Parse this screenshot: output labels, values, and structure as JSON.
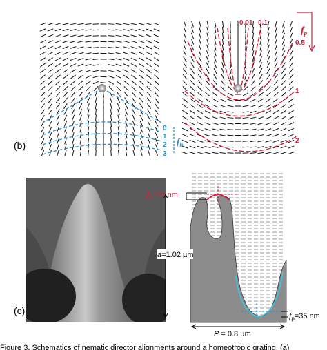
{
  "panel_b": {
    "label": "(b)",
    "left": {
      "contour_labels": [
        "0",
        "1",
        "2",
        "3"
      ],
      "axis_symbol": "f",
      "axis_subscript": "h"
    },
    "right": {
      "contour_labels": [
        "0.01",
        "0.1",
        "0.5",
        "1",
        "2"
      ],
      "axis_symbol": "f",
      "axis_subscript": "p"
    }
  },
  "panel_c": {
    "label": "(c)",
    "fh_annotation": {
      "symbol": "f",
      "subscript": "h",
      "text": "=24 nm"
    },
    "a_annotation": {
      "symbol": "a",
      "text": "=1.02 µm"
    },
    "p_annotation": {
      "symbol": "P",
      "text": " = 0.8 µm"
    },
    "fp_annotation": {
      "symbol": "f",
      "subscript": "p",
      "text": "=35 nm"
    }
  },
  "caption": "Figure 3. Schematics of nematic director alignments around a homeotropic grating. (a)"
}
